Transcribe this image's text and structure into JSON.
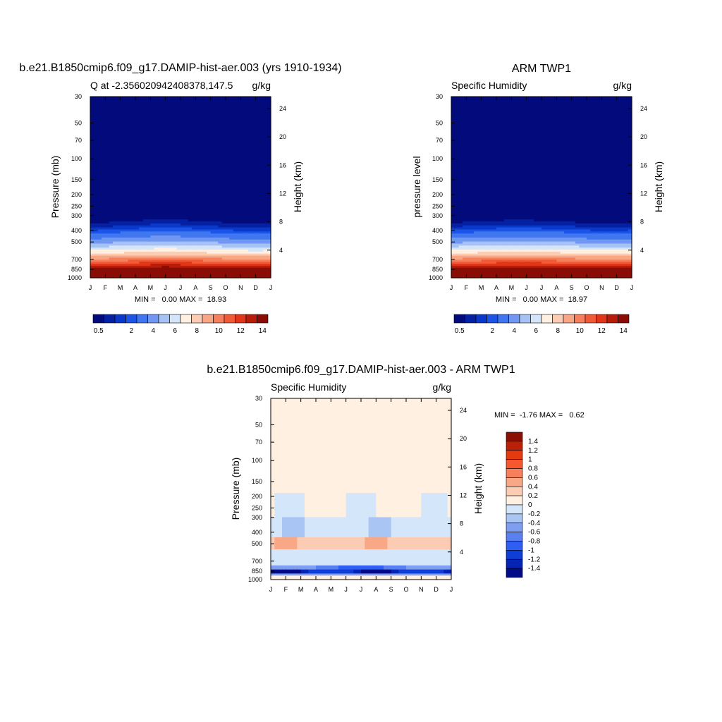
{
  "chart_data": [
    {
      "type": "heatmap",
      "title": "b.e21.B1850cmip6.f09_g17.DAMIP-hist-aer.003 (yrs 1910-1934)",
      "subtitle_left": "Q at -2.356020942408378,147.5",
      "units": "g/kg",
      "xlabel": "",
      "ylabel": "Pressure (mb)",
      "ylabel_right": "Height (km)",
      "x_ticks": [
        "J",
        "F",
        "M",
        "A",
        "M",
        "J",
        "J",
        "A",
        "S",
        "O",
        "N",
        "D",
        "J"
      ],
      "y_ticks": [
        30,
        50,
        70,
        100,
        150,
        200,
        250,
        300,
        400,
        500,
        700,
        850,
        1000
      ],
      "right_ticks": [
        24,
        20,
        16,
        12,
        8,
        4
      ],
      "ylim": [
        30,
        1000
      ],
      "y_scale": "log",
      "min_text": "MIN =   0.00 MAX =  18.93",
      "colorbar_levels": [
        0.5,
        1,
        1.5,
        2,
        3,
        4,
        5,
        6,
        7,
        8,
        9,
        10,
        11,
        12,
        13,
        14
      ],
      "colorbar_labels": [
        "0.5",
        "2",
        "4",
        "6",
        "8",
        "10",
        "12",
        "14"
      ],
      "colorbar_orientation": "horizontal"
    },
    {
      "type": "heatmap",
      "title": "ARM TWP1",
      "subtitle_left": "Specific Humidity",
      "units": "g/kg",
      "xlabel": "",
      "ylabel": "pressure level",
      "ylabel_right": "Height (km)",
      "x_ticks": [
        "J",
        "F",
        "M",
        "A",
        "M",
        "J",
        "J",
        "A",
        "S",
        "O",
        "N",
        "D",
        "J"
      ],
      "y_ticks": [
        30,
        50,
        70,
        100,
        150,
        200,
        250,
        300,
        400,
        500,
        700,
        850,
        1000
      ],
      "right_ticks": [
        24,
        20,
        16,
        12,
        8,
        4
      ],
      "ylim": [
        30,
        1000
      ],
      "y_scale": "log",
      "min_text": "MIN =   0.00 MAX =  18.97",
      "colorbar_levels": [
        0.5,
        1,
        1.5,
        2,
        3,
        4,
        5,
        6,
        7,
        8,
        9,
        10,
        11,
        12,
        13,
        14
      ],
      "colorbar_labels": [
        "0.5",
        "2",
        "4",
        "6",
        "8",
        "10",
        "12",
        "14"
      ],
      "colorbar_orientation": "horizontal"
    },
    {
      "type": "heatmap",
      "title": "b.e21.B1850cmip6.f09_g17.DAMIP-hist-aer.003 - ARM TWP1",
      "subtitle_left": "Specific Humidity",
      "units": "g/kg",
      "xlabel": "",
      "ylabel": "Pressure (mb)",
      "ylabel_right": "Height (km)",
      "x_ticks": [
        "J",
        "F",
        "M",
        "A",
        "M",
        "J",
        "J",
        "A",
        "S",
        "O",
        "N",
        "D",
        "J"
      ],
      "y_ticks": [
        30,
        50,
        70,
        100,
        150,
        200,
        250,
        300,
        400,
        500,
        700,
        850,
        1000
      ],
      "right_ticks": [
        24,
        20,
        16,
        12,
        8,
        4
      ],
      "ylim": [
        30,
        1000
      ],
      "y_scale": "log",
      "min_text": "MIN =  -1.76 MAX =   0.62",
      "colorbar_labels": [
        "1.4",
        "1.2",
        "1",
        "0.8",
        "0.6",
        "0.4",
        "0.2",
        "0",
        "-0.2",
        "-0.4",
        "-0.6",
        "-0.8",
        "-1",
        "-1.2",
        "-1.4"
      ],
      "colorbar_orientation": "vertical"
    }
  ],
  "colors": {
    "seq": [
      "#030b7c",
      "#0521a3",
      "#0a39c9",
      "#1a55e8",
      "#4077f0",
      "#7097f2",
      "#a6c2f5",
      "#d4e5fa",
      "#fff0e2",
      "#fccdb2",
      "#f9a684",
      "#f67f5c",
      "#f05a36",
      "#e2361b",
      "#b81d0b",
      "#8a0d05"
    ],
    "div": [
      "#8b0f05",
      "#bb2109",
      "#e43a10",
      "#f6572e",
      "#f6805c",
      "#f9a887",
      "#fccbb4",
      "#fff0e1",
      "#d4e6fa",
      "#a8c5f4",
      "#7f9ef0",
      "#5a7ff0",
      "#2f5ef2",
      "#0f3ed6",
      "#0624b3",
      "#020b88"
    ]
  }
}
